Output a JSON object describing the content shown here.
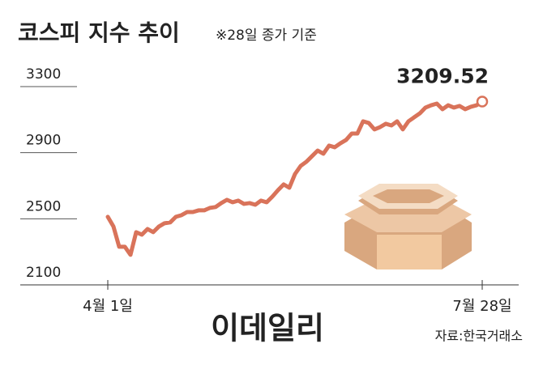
{
  "chart_data": {
    "type": "line",
    "title": "코스피 지수 추이",
    "subtitle": "※28일 종가 기준",
    "source": "자료:한국거래소",
    "watermark": "이데일리",
    "categories": [
      "4월 1일",
      null,
      null,
      null,
      null,
      null,
      null,
      null,
      null,
      null,
      null,
      null,
      null,
      null,
      null,
      null,
      null,
      null,
      null,
      null,
      null,
      null,
      null,
      null,
      null,
      null,
      null,
      null,
      null,
      null,
      null,
      null,
      null,
      null,
      null,
      null,
      null,
      null,
      null,
      null,
      null,
      null,
      null,
      null,
      null,
      null,
      null,
      null,
      null,
      null,
      null,
      null,
      null,
      null,
      null,
      null,
      null,
      null,
      null,
      null,
      null,
      null,
      null,
      null,
      null,
      null,
      "7월 28일"
    ],
    "series": [
      {
        "name": "코스피",
        "color": "#d9735a",
        "values": [
          2512,
          2453,
          2331,
          2331,
          2282,
          2419,
          2404,
          2438,
          2419,
          2453,
          2473,
          2478,
          2512,
          2522,
          2541,
          2541,
          2551,
          2551,
          2566,
          2571,
          2595,
          2615,
          2600,
          2610,
          2590,
          2595,
          2585,
          2610,
          2600,
          2634,
          2673,
          2708,
          2688,
          2771,
          2820,
          2845,
          2879,
          2913,
          2894,
          2943,
          2933,
          2957,
          2977,
          3016,
          3016,
          3090,
          3080,
          3041,
          3055,
          3075,
          3065,
          3090,
          3041,
          3090,
          3114,
          3138,
          3173,
          3187,
          3197,
          3163,
          3187,
          3173,
          3183,
          3163,
          3178,
          3187,
          3209.52
        ]
      }
    ],
    "ylim": [
      2100,
      3300
    ],
    "yticks": [
      2100,
      2500,
      2900,
      3300
    ]
  }
}
